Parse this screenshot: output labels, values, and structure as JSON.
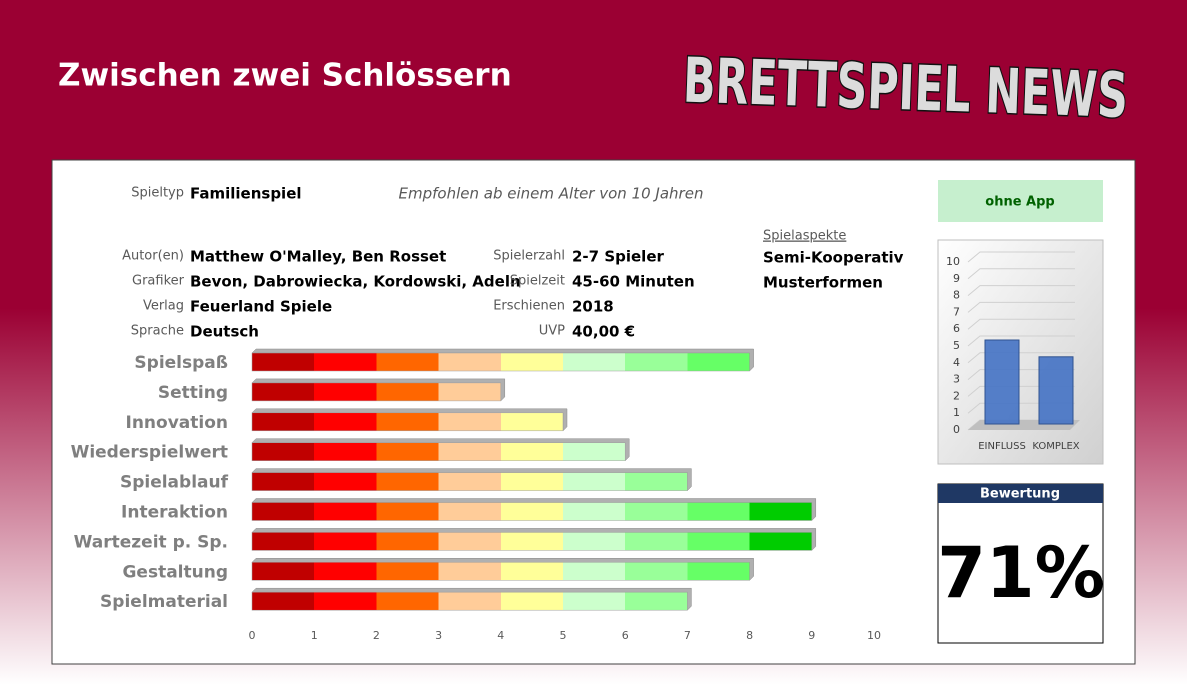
{
  "header": {
    "title": "Zwischen zwei Schlössern",
    "logo": "BRETTSPIEL NEWS"
  },
  "info": {
    "Spieltyp": {
      "label": "Spieltyp",
      "value": "Familienspiel"
    },
    "recommendation": "Empfohlen ab einem Alter von 10 Jahren",
    "left": [
      {
        "label": "Autor(en)",
        "value": "Matthew O'Malley, Ben Rosset"
      },
      {
        "label": "Grafiker",
        "value": "Bevon, Dabrowiecka, Kordowski, Adeln"
      },
      {
        "label": "Verlag",
        "value": "Feuerland Spiele"
      },
      {
        "label": "Sprache",
        "value": "Deutsch"
      }
    ],
    "right": [
      {
        "label": "Spielerzahl",
        "value": "2-7 Spieler"
      },
      {
        "label": "Spielzeit",
        "value": "45-60 Minuten"
      },
      {
        "label": "Erschienen",
        "value": "2018"
      },
      {
        "label": "UVP",
        "value": "40,00 €"
      }
    ]
  },
  "aspects": {
    "title": "Spielaspekte",
    "items": [
      "Semi-Kooperativ",
      "Musterformen"
    ]
  },
  "app": "ohne App",
  "rating": {
    "title": "Bewertung",
    "value": "71%"
  },
  "chart_data": [
    {
      "type": "bar",
      "orientation": "horizontal",
      "categories": [
        "Spielspaß",
        "Setting",
        "Innovation",
        "Wiederspielwert",
        "Spielablauf",
        "Interaktion",
        "Wartezeit p. Sp.",
        "Gestaltung",
        "Spielmaterial"
      ],
      "values": [
        8,
        4,
        5,
        6,
        7,
        9,
        9,
        8,
        7
      ],
      "colors": [
        "#c00000",
        "#ff0000",
        "#ff6600",
        "#ffcc99",
        "#ffff99",
        "#ccffcc",
        "#99ff99",
        "#66ff66",
        "#00cc00",
        "#009900"
      ],
      "xlim": [
        0,
        10
      ],
      "xticks": [
        0,
        1,
        2,
        3,
        4,
        5,
        6,
        7,
        8,
        9,
        10
      ]
    },
    {
      "type": "bar",
      "orientation": "vertical",
      "categories": [
        "EINFLUSS",
        "KOMPLEX"
      ],
      "values": [
        5,
        4
      ],
      "color": "#4472c4",
      "ylim": [
        0,
        10
      ],
      "yticks": [
        0,
        1,
        2,
        3,
        4,
        5,
        6,
        7,
        8,
        9,
        10
      ],
      "grid": true
    }
  ]
}
